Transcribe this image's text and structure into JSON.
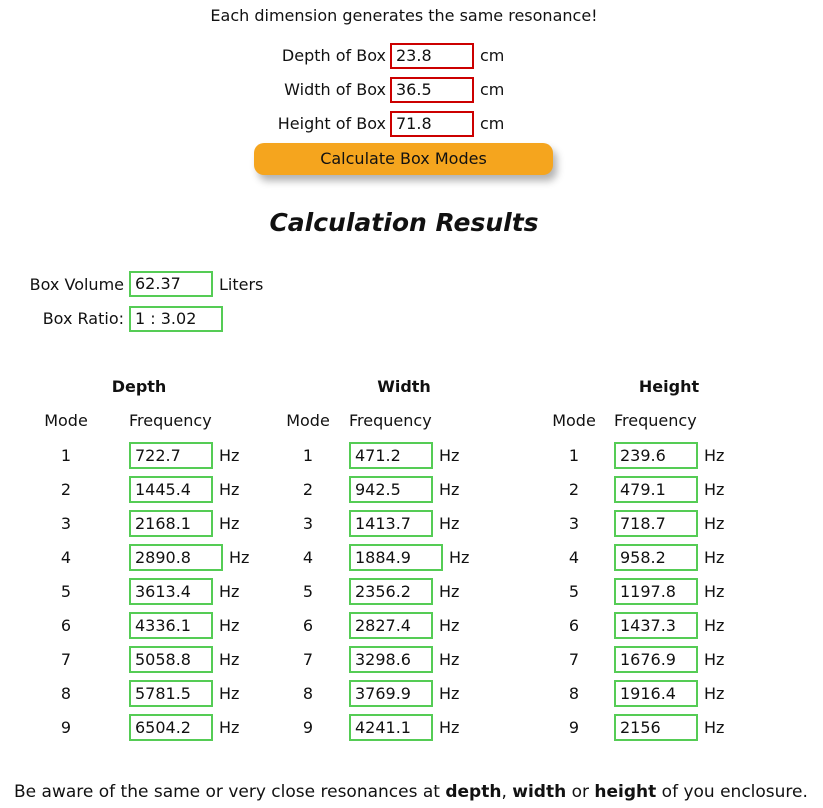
{
  "header": {
    "note": "Each dimension generates the same resonance!",
    "button": "Calculate Box Modes"
  },
  "inputs": [
    {
      "label": "Depth of Box",
      "value": "23.8",
      "unit": "cm"
    },
    {
      "label": "Width of Box",
      "value": "36.5",
      "unit": "cm"
    },
    {
      "label": "Height of Box",
      "value": "71.8",
      "unit": "cm"
    }
  ],
  "results": {
    "title": "Calculation Results",
    "volume": {
      "label": "Box Volume",
      "value": "62.37",
      "unit": "Liters"
    },
    "ratio": {
      "label": "Box Ratio:",
      "value": "1 : 3.02"
    }
  },
  "modes": {
    "mode_header": "Mode",
    "frequency_header": "Frequency",
    "unit": "Hz",
    "groups": [
      {
        "title": "Depth",
        "rows": [
          {
            "mode": 1,
            "frequency": "722.7"
          },
          {
            "mode": 2,
            "frequency": "1445.4"
          },
          {
            "mode": 3,
            "frequency": "2168.1"
          },
          {
            "mode": 4,
            "frequency": "2890.8"
          },
          {
            "mode": 5,
            "frequency": "3613.4"
          },
          {
            "mode": 6,
            "frequency": "4336.1"
          },
          {
            "mode": 7,
            "frequency": "5058.8"
          },
          {
            "mode": 8,
            "frequency": "5781.5"
          },
          {
            "mode": 9,
            "frequency": "6504.2"
          }
        ]
      },
      {
        "title": "Width",
        "rows": [
          {
            "mode": 1,
            "frequency": "471.2"
          },
          {
            "mode": 2,
            "frequency": "942.5"
          },
          {
            "mode": 3,
            "frequency": "1413.7"
          },
          {
            "mode": 4,
            "frequency": "1884.9"
          },
          {
            "mode": 5,
            "frequency": "2356.2"
          },
          {
            "mode": 6,
            "frequency": "2827.4"
          },
          {
            "mode": 7,
            "frequency": "3298.6"
          },
          {
            "mode": 8,
            "frequency": "3769.9"
          },
          {
            "mode": 9,
            "frequency": "4241.1"
          }
        ]
      },
      {
        "title": "Height",
        "rows": [
          {
            "mode": 1,
            "frequency": "239.6"
          },
          {
            "mode": 2,
            "frequency": "479.1"
          },
          {
            "mode": 3,
            "frequency": "718.7"
          },
          {
            "mode": 4,
            "frequency": "958.2"
          },
          {
            "mode": 5,
            "frequency": "1197.8"
          },
          {
            "mode": 6,
            "frequency": "1437.3"
          },
          {
            "mode": 7,
            "frequency": "1676.9"
          },
          {
            "mode": 8,
            "frequency": "1916.4"
          },
          {
            "mode": 9,
            "frequency": "2156"
          }
        ]
      }
    ]
  },
  "footer": [
    {
      "text": "Be aware of the same or very close resonances at ",
      "bold": false
    },
    {
      "text": "depth",
      "bold": true
    },
    {
      "text": ", ",
      "bold": false
    },
    {
      "text": "width",
      "bold": true
    },
    {
      "text": " or ",
      "bold": false
    },
    {
      "text": "height",
      "bold": true
    },
    {
      "text": " of you enclosure.",
      "bold": false
    }
  ]
}
